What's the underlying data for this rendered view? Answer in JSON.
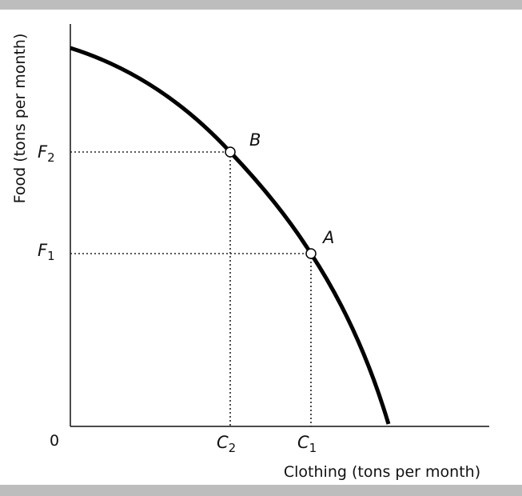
{
  "axes": {
    "origin": "0",
    "y_title": "Food (tons per month)",
    "x_title": "Clothing (tons per month)"
  },
  "food_levels": [
    {
      "symbol": "F",
      "subscript": "2"
    },
    {
      "symbol": "F",
      "subscript": "1"
    }
  ],
  "clothing_levels": [
    {
      "symbol": "C",
      "subscript": "2"
    },
    {
      "symbol": "C",
      "subscript": "1"
    }
  ],
  "points": [
    {
      "label": "B"
    },
    {
      "label": "A"
    }
  ]
}
